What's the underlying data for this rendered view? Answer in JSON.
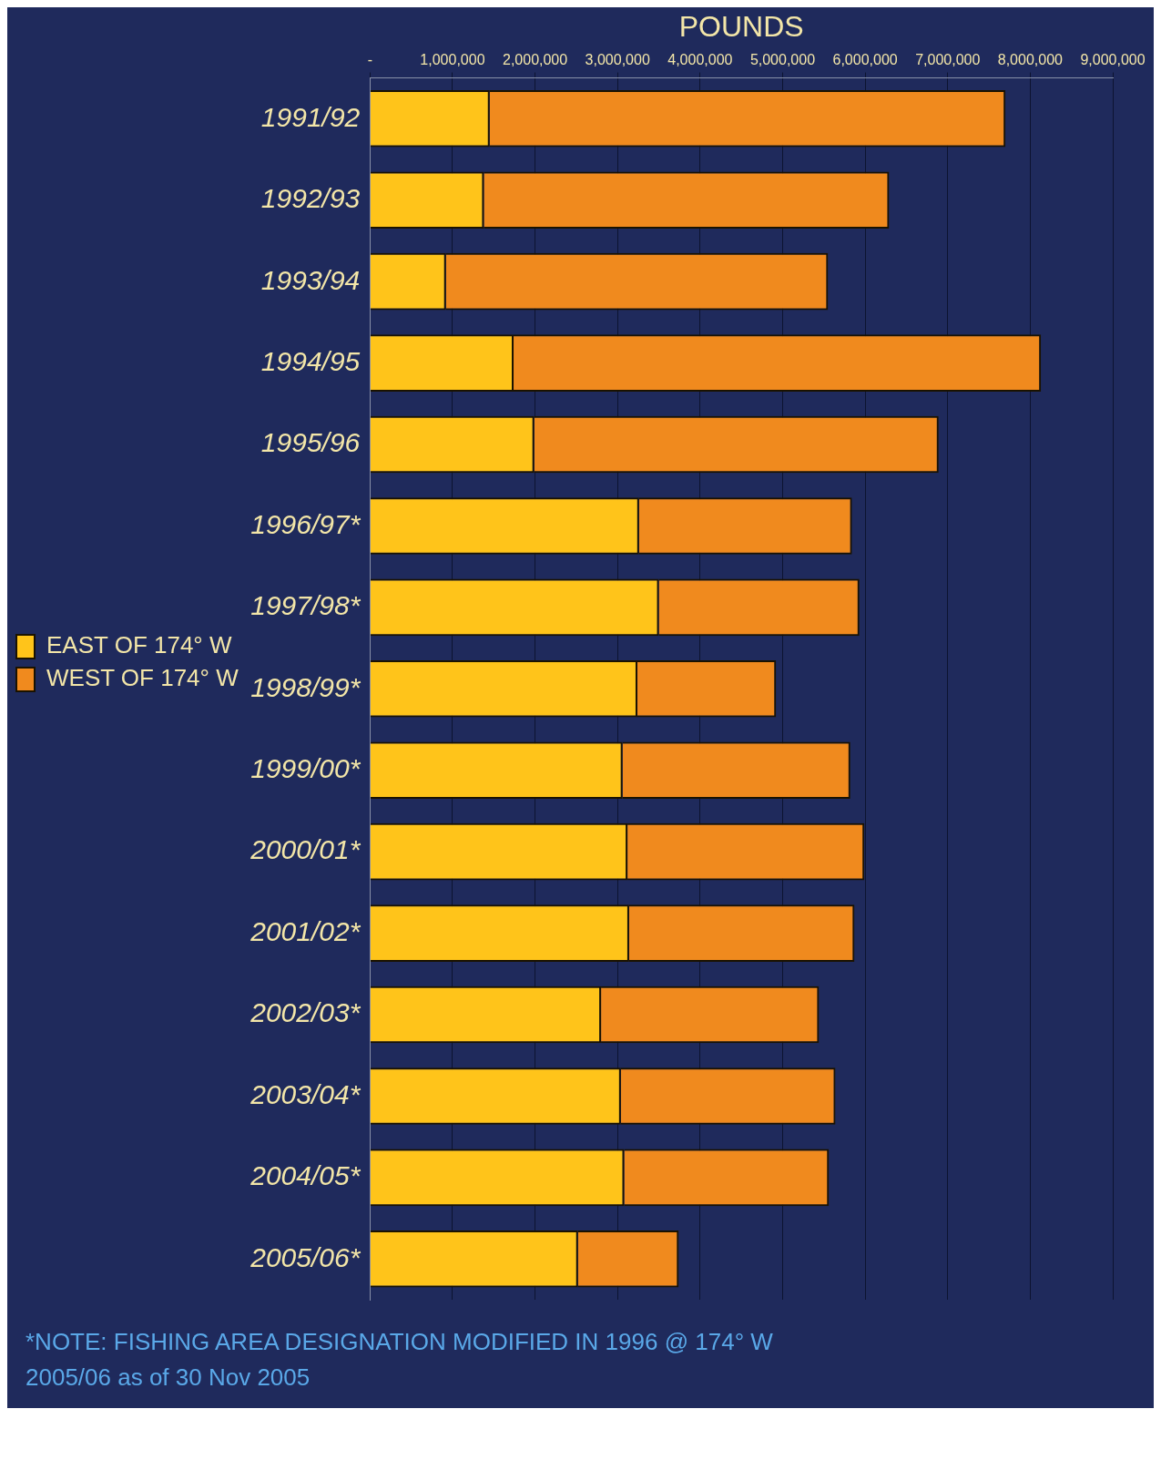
{
  "chart_data": {
    "type": "bar",
    "orientation": "horizontal",
    "stacked": true,
    "xlabel": "POUNDS",
    "categories": [
      "1991/92",
      "1992/93",
      "1993/94",
      "1994/95",
      "1995/96",
      "1996/97*",
      "1997/98*",
      "1998/99*",
      "1999/00*",
      "2000/01*",
      "2001/02*",
      "2002/03*",
      "2003/04*",
      "2004/05*",
      "2005/06*"
    ],
    "series": [
      {
        "name": "EAST OF 174° W",
        "color": "#ffc41a",
        "values": [
          1450000,
          1380000,
          920000,
          1740000,
          1990000,
          3260000,
          3500000,
          3240000,
          3060000,
          3120000,
          3140000,
          2800000,
          3040000,
          3080000,
          2520000
        ]
      },
      {
        "name": "WEST OF 174° W",
        "color": "#f08a1e",
        "values": [
          6250000,
          4910000,
          4630000,
          6390000,
          4900000,
          2580000,
          2430000,
          1680000,
          2760000,
          2870000,
          2730000,
          2640000,
          2600000,
          2480000,
          1220000
        ]
      }
    ],
    "xlim": [
      0,
      9000000
    ],
    "xticks": [
      {
        "value": 0,
        "label": "-"
      },
      {
        "value": 1000000,
        "label": "1,000,000"
      },
      {
        "value": 2000000,
        "label": "2,000,000"
      },
      {
        "value": 3000000,
        "label": "3,000,000"
      },
      {
        "value": 4000000,
        "label": "4,000,000"
      },
      {
        "value": 5000000,
        "label": "5,000,000"
      },
      {
        "value": 6000000,
        "label": "6,000,000"
      },
      {
        "value": 7000000,
        "label": "7,000,000"
      },
      {
        "value": 8000000,
        "label": "8,000,000"
      },
      {
        "value": 9000000,
        "label": "9,000,000"
      }
    ],
    "grid": "x",
    "legend": "left",
    "annotations": [
      "*NOTE:  FISHING AREA DESIGNATION MODIFIED IN 1996 @ 174° W",
      "2005/06 as of 30 Nov 2005"
    ]
  }
}
